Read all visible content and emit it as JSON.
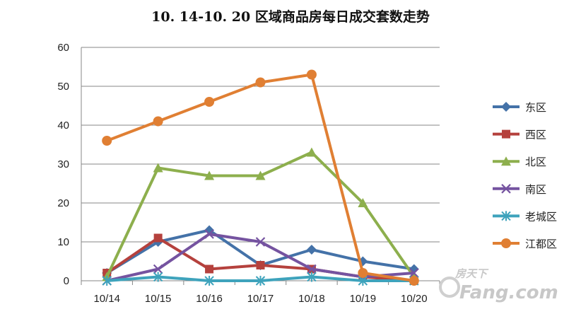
{
  "chart_data": {
    "type": "line",
    "title": "10. 14-10. 20  区域商品房每日成交套数走势",
    "xlabel": "",
    "ylabel": "",
    "categories": [
      "10/14",
      "10/15",
      "10/16",
      "10/17",
      "10/18",
      "10/19",
      "10/20"
    ],
    "ylim": [
      0,
      60
    ],
    "yticks": [
      0,
      10,
      20,
      30,
      40,
      50,
      60
    ],
    "grid": true,
    "legend_position": "right",
    "series": [
      {
        "name": "东区",
        "color": "#4472A8",
        "marker": "diamond",
        "values": [
          2,
          10,
          13,
          4,
          8,
          5,
          3
        ]
      },
      {
        "name": "西区",
        "color": "#B5413D",
        "marker": "square",
        "values": [
          2,
          11,
          3,
          4,
          3,
          1,
          0
        ]
      },
      {
        "name": "北区",
        "color": "#8DAF4D",
        "marker": "triangle",
        "values": [
          1,
          29,
          27,
          27,
          33,
          20,
          1
        ]
      },
      {
        "name": "南区",
        "color": "#7553A0",
        "marker": "x",
        "values": [
          0,
          3,
          12,
          10,
          3,
          1,
          2
        ]
      },
      {
        "name": "老城区",
        "color": "#3EA3BC",
        "marker": "asterisk",
        "values": [
          0,
          1,
          0,
          0,
          1,
          0,
          0
        ]
      },
      {
        "name": "江都区",
        "color": "#E07F33",
        "marker": "circle",
        "values": [
          36,
          41,
          46,
          51,
          53,
          2,
          0
        ]
      }
    ]
  },
  "watermark": {
    "brand": "Fang.com",
    "cn": "房天下"
  }
}
